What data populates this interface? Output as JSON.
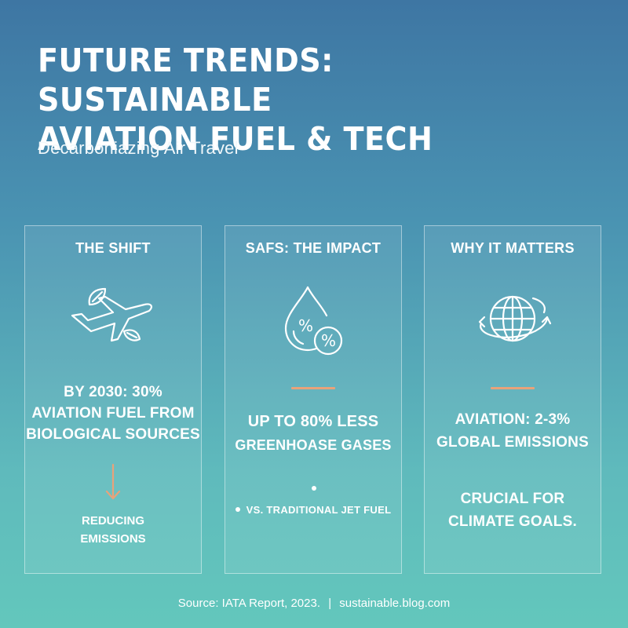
{
  "header": {
    "title_line1": "FUTURE TRENDS: SUSTAINABLE",
    "title_line2": "AVIATION FUEL & TECH",
    "subtitle": "Decarboniazing Air Travel"
  },
  "cards": [
    {
      "title": "THE SHIFT",
      "icon": "plane-leaf-icon",
      "stat_lines": [
        "BY 2030: 30%",
        "AVIATION FUEL FROM",
        "BIOLOGICAL SOURCES"
      ],
      "arrow_icon": "arrow-down-icon",
      "note_lines": [
        "REDUCING",
        "EMISSIONS"
      ]
    },
    {
      "title": "SAFS: THE IMPACT",
      "icon": "fuel-drop-percent-icon",
      "stat_lines": [
        "UP TO 80% LESS",
        "GREENHOASE GASES"
      ],
      "bullet": "VS. TRADITIONAL JET FUEL"
    },
    {
      "title": "WHY IT MATTERS",
      "icon": "globe-cycle-icon",
      "stat_lines": [
        "AVIATION: 2-3%",
        "GLOBAL EMISSIONS"
      ],
      "note_lines": [
        "CRUCIAL FOR",
        "CLIMATE GOALS."
      ]
    }
  ],
  "footer": {
    "source": "Source: IATA Report, 2023.",
    "separator": "|",
    "site": "sustainable.blog.com"
  },
  "colors": {
    "accent": "#e8a27a",
    "text": "#ffffff",
    "gradient_top": "#3e76a3",
    "gradient_bottom": "#63c7bc"
  }
}
